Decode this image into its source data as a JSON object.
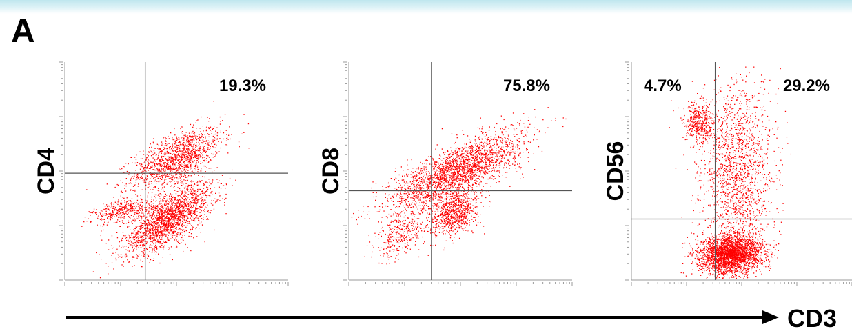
{
  "panel_label": "A",
  "colors": {
    "dots": "#ff0000",
    "axis": "#9a9a9a",
    "gate": "#555555",
    "text": "#000000",
    "band": "#bfe6ee"
  },
  "chart_data": [
    {
      "type": "scatter",
      "ylabel": "CD4",
      "xlabel": "CD3",
      "xscale": "log",
      "yscale": "log",
      "quadrant_percentages": {
        "upper_right": "19.3%"
      },
      "populations": [
        {
          "x_frac": 0.5,
          "y_frac": 0.56,
          "sx": 0.1,
          "sy": 0.07,
          "rho": 0.6,
          "count": 1400
        },
        {
          "x_frac": 0.46,
          "y_frac": 0.28,
          "sx": 0.1,
          "sy": 0.08,
          "rho": 0.7,
          "count": 2100
        },
        {
          "x_frac": 0.26,
          "y_frac": 0.32,
          "sx": 0.07,
          "sy": 0.03,
          "rho": 0.5,
          "count": 380
        }
      ],
      "gate": {
        "x_frac": 0.36,
        "y_frac": 0.49
      }
    },
    {
      "type": "scatter",
      "ylabel": "CD8",
      "xlabel": "CD3",
      "xscale": "log",
      "yscale": "log",
      "quadrant_percentages": {
        "upper_right": "75.8%"
      },
      "populations": [
        {
          "x_frac": 0.48,
          "y_frac": 0.5,
          "sx": 0.15,
          "sy": 0.09,
          "rho": 0.75,
          "count": 2400
        },
        {
          "x_frac": 0.47,
          "y_frac": 0.31,
          "sx": 0.05,
          "sy": 0.05,
          "rho": 0.3,
          "count": 800
        },
        {
          "x_frac": 0.24,
          "y_frac": 0.22,
          "sx": 0.06,
          "sy": 0.06,
          "rho": 0.5,
          "count": 350
        }
      ],
      "gate": {
        "x_frac": 0.37,
        "y_frac": 0.41
      }
    },
    {
      "type": "scatter",
      "ylabel": "CD56",
      "xlabel": "CD3",
      "xscale": "log",
      "yscale": "log",
      "quadrant_percentages": {
        "upper_left": "4.7%",
        "upper_right": "29.2%"
      },
      "populations": [
        {
          "x_frac": 0.45,
          "y_frac": 0.12,
          "sx": 0.07,
          "sy": 0.045,
          "rho": 0.1,
          "count": 2800
        },
        {
          "x_frac": 0.48,
          "y_frac": 0.5,
          "sx": 0.08,
          "sy": 0.2,
          "rho": 0.0,
          "count": 1700
        },
        {
          "x_frac": 0.3,
          "y_frac": 0.72,
          "sx": 0.035,
          "sy": 0.05,
          "rho": 0.0,
          "count": 420
        }
      ],
      "gate": {
        "x_frac": 0.38,
        "y_frac": 0.28
      }
    }
  ],
  "x_axis_label": "CD3"
}
